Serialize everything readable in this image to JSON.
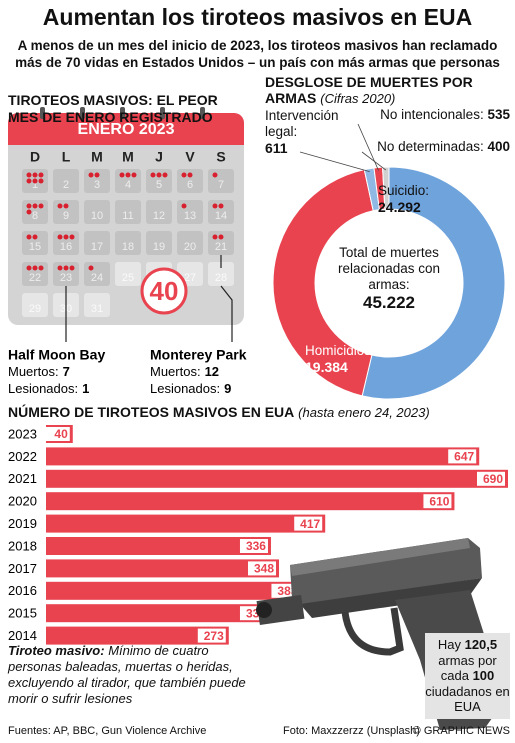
{
  "header": {
    "title": "Aumentan los tiroteos masivos en EUA",
    "subtitle": "A menos de un mes del inicio de 2023, los tiroteos masivos han reclamado más de 70 vidas en Estados Unidos – un país con más armas que personas"
  },
  "calendar": {
    "title": "TIROTEOS MASIVOS: EL PEOR MES DE ENERO REGISTRADO",
    "month": "ENERO 2023",
    "weekdays": [
      "D",
      "L",
      "M",
      "M",
      "J",
      "V",
      "S"
    ],
    "days": [
      1,
      2,
      3,
      4,
      5,
      6,
      7,
      8,
      9,
      10,
      11,
      12,
      13,
      14,
      15,
      16,
      17,
      18,
      19,
      20,
      21,
      22,
      23,
      24,
      25,
      26,
      27,
      28,
      29,
      30,
      31
    ],
    "dots": [
      6,
      0,
      2,
      3,
      3,
      2,
      1,
      4,
      2,
      0,
      0,
      0,
      1,
      2,
      2,
      3,
      0,
      0,
      0,
      0,
      2,
      3,
      3,
      1,
      null,
      null,
      null,
      null,
      null,
      null,
      null
    ],
    "total": "40",
    "events": [
      {
        "place": "Half Moon Bay",
        "killed_label": "Muertos:",
        "killed": "7",
        "injured_label": "Lesionados:",
        "injured": "1"
      },
      {
        "place": "Monterey Park",
        "killed_label": "Muertos:",
        "killed": "12",
        "injured_label": "Lesionados:",
        "injured": "9"
      }
    ]
  },
  "chart_data": [
    {
      "type": "donut",
      "title": "DESGLOSE DE MUERTES POR ARMAS",
      "subtitle": "(Cifras 2020)",
      "categories": [
        "Suicidio:",
        "Homicidios:",
        "Intervención legal:",
        "No intencionales:",
        "No determinadas:"
      ],
      "values": [
        24292,
        19384,
        611,
        535,
        400
      ],
      "value_labels": [
        "24.292",
        "19.384",
        "611",
        "535",
        "400"
      ],
      "colors": [
        "#6fa3dc",
        "#e8434f",
        "#8fb8e4",
        "#e8434f",
        "#d0d0d0"
      ],
      "center_label": "Total de muertes relacionadas con armas:",
      "total": 45222,
      "total_label": "45.222"
    },
    {
      "type": "barh",
      "title": "NÚMERO DE TIROTEOS MASIVOS EN EUA",
      "subtitle": "(hasta enero 24, 2023)",
      "categories": [
        "2023",
        "2022",
        "2021",
        "2020",
        "2019",
        "2018",
        "2017",
        "2016",
        "2015",
        "2014"
      ],
      "values": [
        40,
        647,
        690,
        610,
        417,
        336,
        348,
        383,
        336,
        273
      ],
      "color": "#e8434f",
      "xlim": [
        0,
        690
      ]
    }
  ],
  "definition": {
    "term": "Tiroteo masivo:",
    "text": "Mínimo de cuatro personas baleadas, muertas o heridas, excluyendo al tirador, que también puede morir o sufrir lesiones"
  },
  "stat": {
    "prefix": "Hay",
    "guns": "120,5",
    "middle": "armas por cada",
    "people": "100",
    "suffix": "ciudadanos en EUA"
  },
  "footer": {
    "sources": "Fuentes: AP, BBC, Gun Violence Archive",
    "photo": "Foto: Maxzzerzz (Unsplash)",
    "credit": "© GRAPHIC NEWS"
  }
}
